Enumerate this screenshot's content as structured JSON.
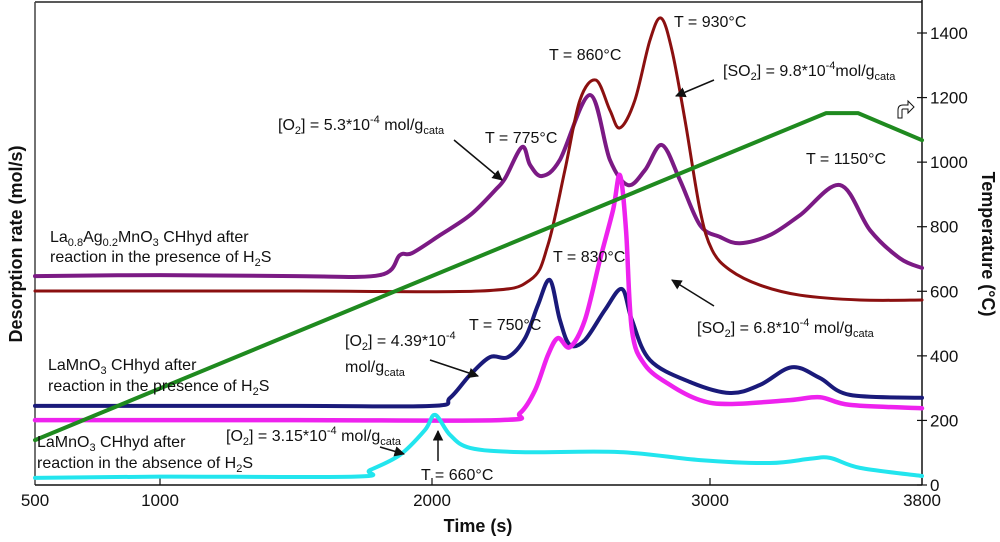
{
  "chart_data": {
    "type": "line",
    "title": "",
    "xlabel": "Time (s)",
    "ylabel_left": "Desorption rate (mol/s)",
    "ylabel_right": "Temperature (°C)",
    "xlim": [
      500,
      3800
    ],
    "x_ticks": [
      500,
      1000,
      2000,
      3000,
      3800
    ],
    "y_right_lim": [
      0,
      1450
    ],
    "y_right_ticks": [
      0,
      200,
      400,
      600,
      800,
      1000,
      1200,
      1400
    ],
    "y_left_ticks": [],
    "grid": false,
    "note": "Desorption curves have no left-axis scale; their y values are given on the right-axis (temperature) vertical scale as arbitrary units.",
    "series": [
      {
        "name": "Temperature",
        "axis": "right",
        "color": "#1f8a1f",
        "marker": "none",
        "points": [
          [
            500,
            139
          ],
          [
            3438,
            1152
          ],
          [
            3559,
            1152
          ],
          [
            3800,
            1068
          ]
        ]
      },
      {
        "name": "La0.8Ag0.2MnO3 O2 (after reaction with H2S)",
        "axis": "left",
        "color": "#7b1a84",
        "marker": "plus",
        "points": [
          [
            500,
            647
          ],
          [
            1000,
            650
          ],
          [
            1500,
            647
          ],
          [
            1809,
            650
          ],
          [
            1882,
            712
          ],
          [
            1926,
            718
          ],
          [
            2029,
            774
          ],
          [
            2137,
            836
          ],
          [
            2227,
            913
          ],
          [
            2263,
            950
          ],
          [
            2324,
            1047
          ],
          [
            2353,
            991
          ],
          [
            2396,
            957
          ],
          [
            2460,
            1007
          ],
          [
            2568,
            1208
          ],
          [
            2640,
            1007
          ],
          [
            2705,
            929
          ],
          [
            2766,
            975
          ],
          [
            2827,
            1053
          ],
          [
            2892,
            944
          ],
          [
            2964,
            805
          ],
          [
            3038,
            768
          ],
          [
            3113,
            749
          ],
          [
            3226,
            774
          ],
          [
            3340,
            836
          ],
          [
            3491,
            929
          ],
          [
            3604,
            789
          ],
          [
            3717,
            702
          ],
          [
            3800,
            672
          ]
        ]
      },
      {
        "name": "La0.8Ag0.2MnO3 SO2 (after reaction with H2S)",
        "axis": "left",
        "color": "#8b1010",
        "marker": "dot",
        "points": [
          [
            500,
            601
          ],
          [
            1500,
            601
          ],
          [
            2173,
            601
          ],
          [
            2353,
            635
          ],
          [
            2417,
            743
          ],
          [
            2478,
            975
          ],
          [
            2532,
            1192
          ],
          [
            2590,
            1254
          ],
          [
            2640,
            1161
          ],
          [
            2676,
            1106
          ],
          [
            2730,
            1192
          ],
          [
            2784,
            1378
          ],
          [
            2824,
            1446
          ],
          [
            2863,
            1347
          ],
          [
            2910,
            1130
          ],
          [
            2964,
            852
          ],
          [
            3008,
            728
          ],
          [
            3075,
            666
          ],
          [
            3189,
            619
          ],
          [
            3340,
            588
          ],
          [
            3566,
            573
          ],
          [
            3800,
            573
          ]
        ]
      },
      {
        "name": "LaMnO3 O2 (after reaction with H2S)",
        "axis": "left",
        "color": "#1a1a7a",
        "marker": "plus",
        "points": [
          [
            500,
            245
          ],
          [
            1500,
            245
          ],
          [
            2000,
            245
          ],
          [
            2065,
            270
          ],
          [
            2137,
            341
          ],
          [
            2209,
            396
          ],
          [
            2273,
            396
          ],
          [
            2335,
            455
          ],
          [
            2381,
            557
          ],
          [
            2424,
            635
          ],
          [
            2460,
            511
          ],
          [
            2496,
            434
          ],
          [
            2550,
            449
          ],
          [
            2622,
            542
          ],
          [
            2683,
            607
          ],
          [
            2719,
            511
          ],
          [
            2784,
            387
          ],
          [
            2928,
            319
          ],
          [
            3075,
            285
          ],
          [
            3189,
            310
          ],
          [
            3309,
            365
          ],
          [
            3415,
            331
          ],
          [
            3528,
            279
          ],
          [
            3800,
            270
          ]
        ]
      },
      {
        "name": "LaMnO3 SO2 (after reaction with H2S)",
        "axis": "left",
        "color": "#ee22ee",
        "marker": "square",
        "points": [
          [
            500,
            201
          ],
          [
            1500,
            201
          ],
          [
            2245,
            201
          ],
          [
            2317,
            223
          ],
          [
            2371,
            294
          ],
          [
            2417,
            402
          ],
          [
            2453,
            455
          ],
          [
            2496,
            427
          ],
          [
            2550,
            511
          ],
          [
            2604,
            697
          ],
          [
            2651,
            851
          ],
          [
            2676,
            960
          ],
          [
            2698,
            790
          ],
          [
            2719,
            480
          ],
          [
            2766,
            372
          ],
          [
            2856,
            310
          ],
          [
            2964,
            263
          ],
          [
            3075,
            251
          ],
          [
            3302,
            263
          ],
          [
            3415,
            272
          ],
          [
            3528,
            248
          ],
          [
            3800,
            238
          ]
        ]
      },
      {
        "name": "LaMnO3 O2 (after reaction in absence of H2S)",
        "axis": "left",
        "color": "#22e5ee",
        "marker": "plus",
        "points": [
          [
            500,
            22
          ],
          [
            1000,
            26
          ],
          [
            1717,
            26
          ],
          [
            1772,
            46
          ],
          [
            1882,
            93
          ],
          [
            1974,
            170
          ],
          [
            2011,
            217
          ],
          [
            2065,
            155
          ],
          [
            2137,
            115
          ],
          [
            2317,
            102
          ],
          [
            2676,
            102
          ],
          [
            2964,
            77
          ],
          [
            3226,
            68
          ],
          [
            3377,
            81
          ],
          [
            3453,
            84
          ],
          [
            3566,
            53
          ],
          [
            3800,
            28
          ]
        ]
      }
    ],
    "annotations": {
      "o2_ag": {
        "main": "[O",
        "sub1": "2",
        "mid": "] = 5.3*10",
        "sup": "-4",
        "tail": " mol/g",
        "sub2": "cata"
      },
      "t775": "T = 775°C",
      "t860": "T = 860°C",
      "t930": "T = 930°C",
      "so2_ag": {
        "main": "[SO",
        "sub1": "2",
        "mid": "] = 9.8*10",
        "sup": "-4",
        "tail": "mol/g",
        "sub2": "cata"
      },
      "t1150": "T = 1150°C",
      "label_ag_line1": {
        "a": "La",
        "s1": "0.8",
        "b": "Ag",
        "s2": "0.2",
        "c": "MnO",
        "s3": "3",
        "d": " CHhyd after"
      },
      "label_ag_line2": {
        "a": "reaction in the presence of H",
        "s1": "2",
        "b": "S"
      },
      "t830": "T = 830°C",
      "t750": "T = 750°C",
      "o2_la": {
        "main": "[O",
        "sub1": "2",
        "mid": "] = 4.39*10",
        "sup": "-4",
        "line2": "mol/g",
        "sub2": "cata"
      },
      "so2_la": {
        "main": "[SO",
        "sub1": "2",
        "mid": "] = 6.8*10",
        "sup": "-4",
        "tail": " mol/g",
        "sub2": "cata"
      },
      "label_la_line1": {
        "a": "LaMnO",
        "s1": "3",
        "b": " CHhyd after"
      },
      "label_la_line2": {
        "a": "reaction in the presence of H",
        "s1": "2",
        "b": "S"
      },
      "o2_la_abs": {
        "main": "[O",
        "sub1": "2",
        "mid": "] = 3.15*10",
        "sup": "-4",
        "tail": " mol/g",
        "sub2": "cata"
      },
      "t660": "T = 660°C",
      "label_abs_line1": {
        "a": "LaMnO",
        "s1": "3",
        "b": " CHhyd after"
      },
      "label_abs_line2": {
        "a": "reaction in the absence of H",
        "s1": "2",
        "b": "S"
      }
    }
  }
}
